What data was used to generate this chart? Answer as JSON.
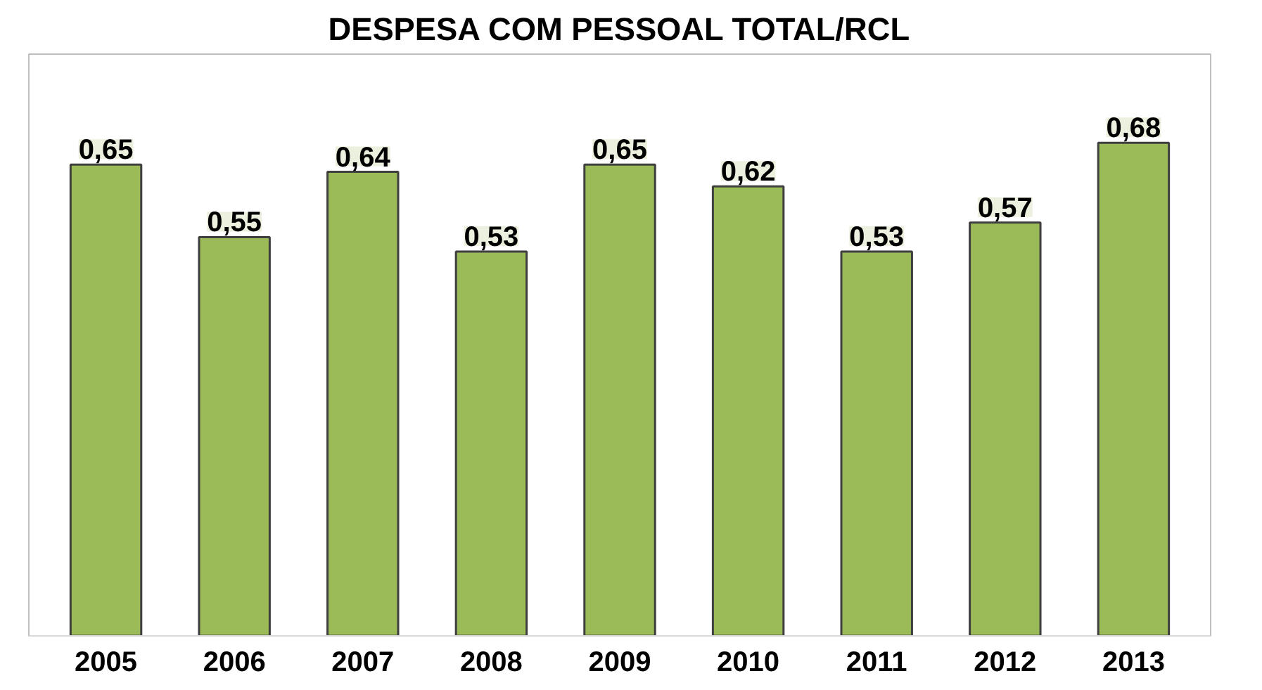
{
  "chart_data": {
    "type": "bar",
    "title": "DESPESA COM PESSOAL TOTAL/RCL",
    "categories": [
      "2005",
      "2006",
      "2007",
      "2008",
      "2009",
      "2010",
      "2011",
      "2012",
      "2013"
    ],
    "values": [
      0.65,
      0.55,
      0.64,
      0.53,
      0.65,
      0.62,
      0.53,
      0.57,
      0.68
    ],
    "value_labels": [
      "0,65",
      "0,55",
      "0,64",
      "0,53",
      "0,65",
      "0,62",
      "0,53",
      "0,57",
      "0,68"
    ],
    "color": "#9bbb59"
  }
}
